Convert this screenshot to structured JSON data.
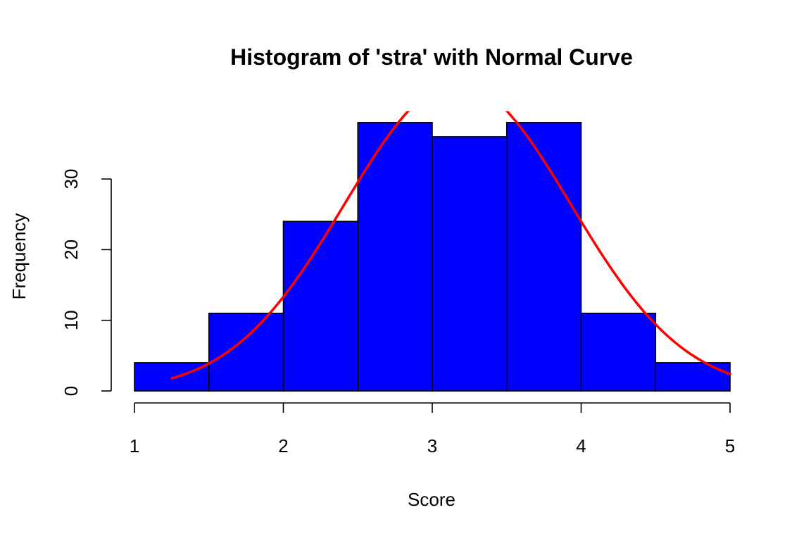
{
  "chart_data": {
    "type": "bar",
    "title": "Histogram of 'stra' with Normal Curve",
    "xlabel": "Score",
    "ylabel": "Frequency",
    "bins": [
      {
        "x0": 1.0,
        "x1": 1.5,
        "count": 4
      },
      {
        "x0": 1.5,
        "x1": 2.0,
        "count": 11
      },
      {
        "x0": 2.0,
        "x1": 2.5,
        "count": 24
      },
      {
        "x0": 2.5,
        "x1": 3.0,
        "count": 38
      },
      {
        "x0": 3.0,
        "x1": 3.5,
        "count": 36
      },
      {
        "x0": 3.5,
        "x1": 4.0,
        "count": 38
      },
      {
        "x0": 4.0,
        "x1": 4.5,
        "count": 11
      },
      {
        "x0": 4.5,
        "x1": 5.0,
        "count": 4
      }
    ],
    "xlim": [
      1,
      5
    ],
    "ylim": [
      0,
      40
    ],
    "xticks": [
      1,
      2,
      3,
      4,
      5
    ],
    "yticks": [
      0,
      10,
      20,
      30
    ],
    "bar_color": "#0000FF",
    "bar_border_color": "#000000",
    "curve": {
      "type": "normal",
      "color": "#FF0000",
      "mean": 3.17,
      "sd": 0.76,
      "n": 166,
      "bin_width": 0.5,
      "x_range": [
        1.25,
        5.0
      ]
    },
    "grid": false,
    "legend": "none"
  }
}
